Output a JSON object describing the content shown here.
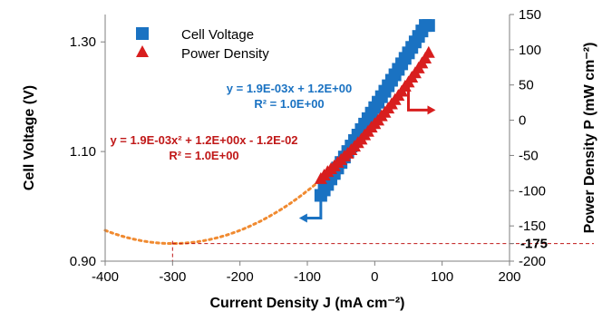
{
  "chart_data": {
    "type": "scatter",
    "xlabel": "Current Density J (mA cm⁻²)",
    "ylabel_left": "Cell Voltage (V)",
    "ylabel_right": "Power Density P (mW cm⁻²)",
    "xlim": [
      -400,
      200
    ],
    "ylim_left": [
      0.9,
      1.35
    ],
    "ylim_right": [
      -200,
      150
    ],
    "x_ticks": [
      "-400",
      "-300",
      "-200",
      "-100",
      "0",
      "100",
      "200"
    ],
    "y_left_ticks": [
      "0.90",
      "1.10",
      "1.30"
    ],
    "y_right_ticks": [
      "-200",
      "-175",
      "-150",
      "-100",
      "-50",
      "0",
      "50",
      "100",
      "150"
    ],
    "grid": false,
    "legend_position": "top-left",
    "series": [
      {
        "name": "Cell Voltage",
        "axis": "left",
        "marker": "square",
        "color": "#1a72c2",
        "x": [
          -80,
          -75,
          -70,
          -65,
          -60,
          -55,
          -50,
          -45,
          -40,
          -35,
          -30,
          -25,
          -20,
          -15,
          -10,
          -5,
          0,
          5,
          10,
          15,
          20,
          25,
          30,
          35,
          40,
          45,
          50,
          55,
          60,
          65,
          70,
          75,
          80
        ],
        "y": [
          1.02,
          1.03,
          1.04,
          1.05,
          1.06,
          1.07,
          1.08,
          1.09,
          1.1,
          1.11,
          1.12,
          1.13,
          1.14,
          1.15,
          1.16,
          1.17,
          1.18,
          1.19,
          1.2,
          1.21,
          1.22,
          1.23,
          1.24,
          1.25,
          1.26,
          1.27,
          1.28,
          1.29,
          1.3,
          1.31,
          1.32,
          1.33,
          1.33
        ]
      },
      {
        "name": "Power Density",
        "axis": "right",
        "marker": "triangle",
        "color": "#d81e1e",
        "x": [
          -80,
          -75,
          -70,
          -65,
          -60,
          -55,
          -50,
          -45,
          -40,
          -35,
          -30,
          -25,
          -20,
          -15,
          -10,
          -5,
          0,
          5,
          10,
          15,
          20,
          25,
          30,
          35,
          40,
          45,
          50,
          55,
          60,
          65,
          70,
          75,
          80
        ],
        "y": [
          -84,
          -79,
          -74,
          -70,
          -66,
          -61,
          -57,
          -52,
          -48,
          -43,
          -38,
          -33,
          -28,
          -22,
          -17,
          -11,
          -6,
          -1,
          5,
          10,
          16,
          22,
          28,
          34,
          40,
          47,
          53,
          60,
          66,
          73,
          80,
          87,
          95
        ]
      }
    ],
    "trendlines": [
      {
        "series": "Cell Voltage",
        "equation": "y = 1.9E-03x + 1.2E+00",
        "r2": "R² = 1.0E+00",
        "color": "#1a72c2"
      },
      {
        "series": "Power Density",
        "equation": "y = 1.9E-03x² + 1.2E+00x - 1.2E-02",
        "r2": "R² = 1.0E+00",
        "color": "#c01818"
      }
    ],
    "fit_curve_color": "#f08a30",
    "annotation": {
      "x_at_min": -300,
      "y_min_right": -175,
      "color": "#c01818"
    }
  }
}
